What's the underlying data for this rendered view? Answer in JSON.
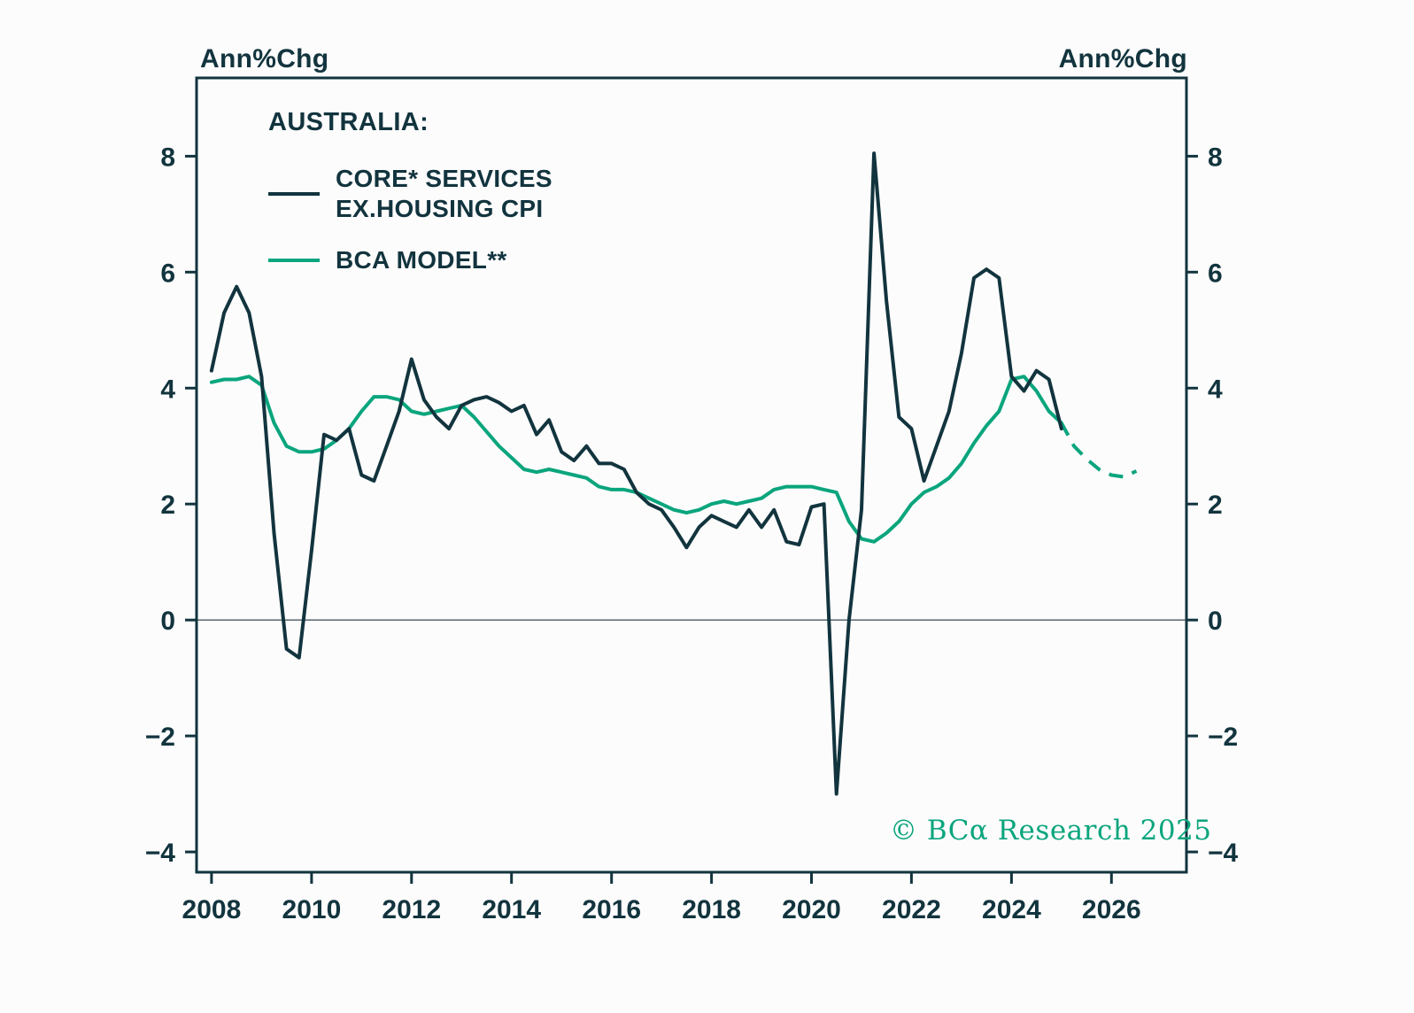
{
  "header": {
    "left_axis_title": "Ann%Chg",
    "right_axis_title": "Ann%Chg"
  },
  "legend": {
    "heading": "AUSTRALIA:",
    "series": [
      {
        "label_line1": "CORE* SERVICES",
        "label_line2": "EX.HOUSING CPI"
      },
      {
        "label_line1": "BCA MODEL**",
        "label_line2": ""
      }
    ]
  },
  "footer": {
    "copyright": "© BCα Research 2025"
  },
  "colors": {
    "core_line": "#12343E",
    "model_line": "#0AA57D",
    "text": "#12343E",
    "background": "#FCFCFC",
    "zero_line": "#4A5A61"
  },
  "chart_data": {
    "type": "line",
    "title": "AUSTRALIA: CORE* SERVICES EX.HOUSING CPI vs BCA MODEL**",
    "ylabel_left": "Ann%Chg",
    "ylabel_right": "Ann%Chg",
    "xlim": [
      2007.7,
      2027.5
    ],
    "ylim": [
      -4.35,
      9.35
    ],
    "x_ticks": [
      2008,
      2010,
      2012,
      2014,
      2016,
      2018,
      2020,
      2022,
      2024,
      2026
    ],
    "y_ticks": [
      -4,
      -2,
      0,
      2,
      4,
      6,
      8
    ],
    "grid": false,
    "zero_line": true,
    "legend_position": "top-left-inside",
    "series": [
      {
        "id": "core-services-ex-housing-cpi",
        "name": "CORE* SERVICES EX.HOUSING CPI",
        "style": "solid",
        "color_key": "core_line",
        "x_start": 2008.0,
        "x_step": 0.25,
        "values": [
          4.3,
          5.3,
          5.75,
          5.3,
          4.2,
          1.5,
          -0.5,
          -0.65,
          1.2,
          3.2,
          3.1,
          3.3,
          2.5,
          2.4,
          3.0,
          3.6,
          4.5,
          3.8,
          3.5,
          3.3,
          3.7,
          3.8,
          3.85,
          3.75,
          3.6,
          3.7,
          3.2,
          3.45,
          2.9,
          2.75,
          3.0,
          2.7,
          2.7,
          2.6,
          2.2,
          2.0,
          1.9,
          1.6,
          1.25,
          1.6,
          1.8,
          1.7,
          1.6,
          1.9,
          1.6,
          1.9,
          1.35,
          1.3,
          1.95,
          2.0,
          -3.0,
          0.0,
          1.9,
          8.05,
          5.5,
          3.5,
          3.3,
          2.4,
          3.0,
          3.6,
          4.6,
          5.9,
          6.05,
          5.9,
          4.2,
          3.95,
          4.3,
          4.15,
          3.3
        ]
      },
      {
        "id": "bca-model",
        "name": "BCA MODEL**",
        "style": "solid",
        "color_key": "model_line",
        "x_start": 2008.0,
        "x_step": 0.25,
        "values": [
          4.1,
          4.15,
          4.15,
          4.2,
          4.05,
          3.4,
          3.0,
          2.9,
          2.9,
          2.95,
          3.1,
          3.3,
          3.6,
          3.85,
          3.85,
          3.8,
          3.6,
          3.55,
          3.6,
          3.65,
          3.7,
          3.5,
          3.25,
          3.0,
          2.8,
          2.6,
          2.55,
          2.6,
          2.55,
          2.5,
          2.45,
          2.3,
          2.25,
          2.25,
          2.2,
          2.1,
          2.0,
          1.9,
          1.85,
          1.9,
          2.0,
          2.05,
          2.0,
          2.05,
          2.1,
          2.25,
          2.3,
          2.3,
          2.3,
          2.25,
          2.2,
          1.7,
          1.4,
          1.35,
          1.5,
          1.7,
          2.0,
          2.2,
          2.3,
          2.45,
          2.7,
          3.05,
          3.35,
          3.6,
          4.15,
          4.2,
          3.95,
          3.6,
          3.4
        ]
      },
      {
        "id": "bca-model-forecast",
        "name": "BCA MODEL** FORECAST",
        "style": "dashed",
        "color_key": "model_line",
        "x_start": 2025.0,
        "x_step": 0.25,
        "values": [
          3.4,
          3.0,
          2.78,
          2.6,
          2.5,
          2.47,
          2.57
        ]
      }
    ]
  }
}
